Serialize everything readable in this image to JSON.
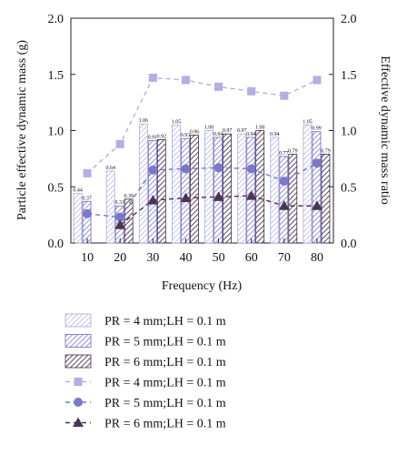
{
  "chart_data": {
    "type": "bar",
    "categories": [
      "10",
      "20",
      "30",
      "40",
      "50",
      "60",
      "70",
      "80"
    ],
    "xlabel": "Frequency (Hz)",
    "ylabel_left": "Particle effective dynamic mass (g)",
    "ylabel_right": "Effective dynamic mass ratio",
    "ylim_left": [
      0.0,
      2.0
    ],
    "ylim_right": [
      0.0,
      2.0
    ],
    "yticks_left": [
      "0.0",
      "0.5",
      "1.0",
      "1.5",
      "2.0"
    ],
    "yticks_right": [
      "0.0",
      "0.5",
      "1.0",
      "1.5",
      "2.0"
    ],
    "grid": false,
    "legend_position": "bottom",
    "bar_series": [
      {
        "name": "PR = 4 mm;LH = 0.1 m",
        "color": "#b8b8e8",
        "values": [
          0.44,
          0.64,
          1.06,
          1.05,
          1.0,
          0.97,
          0.94,
          1.05
        ],
        "labels": [
          "0.44",
          "0.64",
          "1.06",
          "1.05",
          "1.00",
          "0.97",
          "0.94",
          "1.05"
        ]
      },
      {
        "name": "PR = 5 mm;LH = 0.1 m",
        "color": "#7b78c8",
        "values": [
          0.37,
          0.33,
          0.91,
          0.93,
          0.94,
          0.94,
          0.77,
          0.99
        ],
        "labels": [
          "0.37",
          "0.33",
          "0.91",
          "0.93",
          "0.94",
          "0.94",
          "0.77",
          "0.99"
        ]
      },
      {
        "name": "PR = 6 mm;LH = 0.1 m",
        "color": "#4a3555",
        "values": [
          null,
          0.39,
          0.92,
          0.96,
          0.97,
          1.0,
          0.79,
          0.79
        ],
        "labels": [
          "",
          "0.39",
          "0.92",
          "0.96",
          "0.97",
          "1.00",
          "0.79",
          "0.79"
        ]
      }
    ],
    "line_series": [
      {
        "name": "PR = 4 mm;LH = 0.1 m",
        "color": "#b0b0e4",
        "marker": "square",
        "values": [
          0.62,
          0.88,
          1.47,
          1.45,
          1.39,
          1.35,
          1.31,
          1.45
        ]
      },
      {
        "name": "PR = 5 mm;LH = 0.1 m",
        "color": "#7a78c8",
        "marker": "circle",
        "values": [
          0.26,
          0.23,
          0.65,
          0.66,
          0.67,
          0.66,
          0.55,
          0.71
        ]
      },
      {
        "name": "PR = 6 mm;LH = 0.1 m",
        "color": "#4a3555",
        "marker": "triangle",
        "values": [
          null,
          0.16,
          0.38,
          0.4,
          0.41,
          0.42,
          0.33,
          0.33
        ]
      }
    ]
  }
}
